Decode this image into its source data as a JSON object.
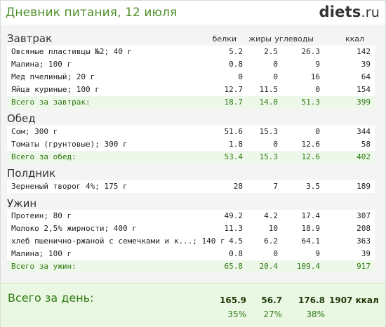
{
  "header": {
    "title": "Дневник питания, 12 июля",
    "logo_main": "diets",
    "logo_tld": ".ru"
  },
  "columns": {
    "protein": "белки",
    "fat": "жиры",
    "carbs": "углеводы",
    "kcal": "ккал"
  },
  "meals": {
    "breakfast": {
      "title": "Завтрак",
      "items": [
        {
          "name": "Овсяные пластивцы №2; 40 г",
          "protein": "5.2",
          "fat": "2.5",
          "carbs": "26.3",
          "kcal": "142"
        },
        {
          "name": "Малина; 100 г",
          "protein": "0.8",
          "fat": "0",
          "carbs": "9",
          "kcal": "39"
        },
        {
          "name": "Мед пчелиный; 20 г",
          "protein": "0",
          "fat": "0",
          "carbs": "16",
          "kcal": "64"
        },
        {
          "name": "Яйца куриные; 100 г",
          "protein": "12.7",
          "fat": "11.5",
          "carbs": "0",
          "kcal": "154"
        }
      ],
      "total": {
        "name": "Всего за завтрак:",
        "protein": "18.7",
        "fat": "14.0",
        "carbs": "51.3",
        "kcal": "399"
      }
    },
    "lunch": {
      "title": "Обед",
      "items": [
        {
          "name": "Сом; 300 г",
          "protein": "51.6",
          "fat": "15.3",
          "carbs": "0",
          "kcal": "344"
        },
        {
          "name": "Томаты (грунтовые); 300 г",
          "protein": "1.8",
          "fat": "0",
          "carbs": "12.6",
          "kcal": "58"
        }
      ],
      "total": {
        "name": "Всего за обед:",
        "protein": "53.4",
        "fat": "15.3",
        "carbs": "12.6",
        "kcal": "402"
      }
    },
    "snack": {
      "title": "Полдник",
      "items": [
        {
          "name": "Зерненый творог 4%; 175 г",
          "protein": "28",
          "fat": "7",
          "carbs": "3.5",
          "kcal": "189"
        }
      ]
    },
    "dinner": {
      "title": "Ужин",
      "items": [
        {
          "name": "Протеин; 80 г",
          "protein": "49.2",
          "fat": "4.2",
          "carbs": "17.4",
          "kcal": "307"
        },
        {
          "name": "Молоко 2,5% жирности; 400 г",
          "protein": "11.3",
          "fat": "10",
          "carbs": "18.9",
          "kcal": "208"
        },
        {
          "name": "хлеб пшенично-ржаной с семечками и к...; 140 г",
          "protein": "4.5",
          "fat": "6.2",
          "carbs": "64.1",
          "kcal": "363"
        },
        {
          "name": "Малина; 100 г",
          "protein": "0.8",
          "fat": "0",
          "carbs": "9",
          "kcal": "39"
        }
      ],
      "total": {
        "name": "Всего за ужин:",
        "protein": "65.8",
        "fat": "20.4",
        "carbs": "109.4",
        "kcal": "917"
      }
    }
  },
  "day_total": {
    "label": "Всего за день:",
    "protein": "165.9",
    "fat": "56.7",
    "carbs": "176.8",
    "kcal": "1907 ккал",
    "protein_pct": "35%",
    "fat_pct": "27%",
    "carbs_pct": "38%"
  }
}
